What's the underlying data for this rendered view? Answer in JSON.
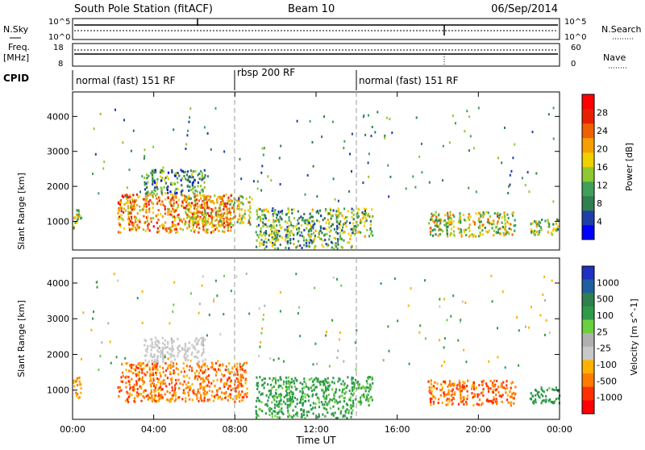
{
  "header": {
    "station": "South Pole Station (fitACF)",
    "beam": "Beam 10",
    "date": "06/Sep/2014"
  },
  "strip": {
    "nsky_label": "N.Sky",
    "nsearch_label": "N.Search",
    "noise_ticks_left": [
      "10^5",
      "10^0"
    ],
    "noise_ticks_right": [
      "10^5",
      "10^0"
    ],
    "freq_label": "Freq.",
    "freq_unit": "[MHz]",
    "nave_label": "Nave",
    "freq_ticks": [
      "18",
      "8"
    ],
    "nave_ticks": [
      "60",
      "0"
    ],
    "cpid_label": "CPID",
    "cpid_segments": [
      {
        "label": "normal (fast) 151 RF",
        "start": "00:00",
        "end": "08:00"
      },
      {
        "label": "rbsp 200 RF",
        "start": "08:00",
        "end": "14:00"
      },
      {
        "label": "normal (fast) 151 RF",
        "start": "14:00",
        "end": "24:00"
      }
    ]
  },
  "colors": {
    "power": [
      "#0000ff",
      "#1e3fa8",
      "#2f7f4f",
      "#3fa05a",
      "#8fc830",
      "#f0d000",
      "#f5a000",
      "#f06000",
      "#e82000",
      "#ff0000"
    ],
    "velocity": [
      "#ff0000",
      "#ff3000",
      "#ff7a00",
      "#ffb000",
      "#c8c8c8",
      "#b0b0b0",
      "#6ad040",
      "#2f9a4a",
      "#2f7f4f",
      "#1f5fa0",
      "#2030c0"
    ]
  },
  "chart_data": [
    {
      "type": "heatmap",
      "name": "Power",
      "xlabel": "",
      "ylabel": "Slant Range [km]",
      "x_range_hours": [
        0,
        24
      ],
      "ylim": [
        180,
        4700
      ],
      "y_ticks": [
        "1000",
        "2000",
        "3000",
        "4000"
      ],
      "colorbar_label": "Power [dB]",
      "colorbar_ticks": [
        "4",
        "8",
        "12",
        "16",
        "20",
        "24",
        "28"
      ],
      "colorbar_range": [
        0,
        32
      ],
      "regions": [
        {
          "t0": 0.0,
          "t1": 0.4,
          "r0": 800,
          "r1": 1400,
          "value": 16
        },
        {
          "t0": 2.2,
          "t1": 7.8,
          "r0": 700,
          "r1": 1800,
          "value": 22
        },
        {
          "t0": 3.5,
          "t1": 6.5,
          "r0": 1800,
          "r1": 2500,
          "value": 10
        },
        {
          "t0": 5.5,
          "t1": 8.8,
          "r0": 900,
          "r1": 1800,
          "value": 18
        },
        {
          "t0": 9.0,
          "t1": 13.8,
          "r0": 250,
          "r1": 1400,
          "value": 12
        },
        {
          "t0": 13.8,
          "t1": 14.8,
          "r0": 600,
          "r1": 1400,
          "value": 14
        },
        {
          "t0": 17.5,
          "t1": 21.8,
          "r0": 600,
          "r1": 1300,
          "value": 16
        },
        {
          "t0": 22.5,
          "t1": 24.0,
          "r0": 650,
          "r1": 1100,
          "value": 14
        }
      ]
    },
    {
      "type": "heatmap",
      "name": "Velocity",
      "xlabel": "Time UT",
      "ylabel": "Slant Range [km]",
      "x_range_hours": [
        0,
        24
      ],
      "x_ticks": [
        "00:00",
        "04:00",
        "08:00",
        "12:00",
        "16:00",
        "20:00",
        "00:00"
      ],
      "ylim": [
        180,
        4700
      ],
      "y_ticks": [
        "1000",
        "2000",
        "3000",
        "4000"
      ],
      "colorbar_label": "Velocity [m s^-1]",
      "colorbar_ticks": [
        "1000",
        "500",
        "100",
        "25",
        "-25",
        "-100",
        "-500",
        "-1000"
      ],
      "regions": [
        {
          "t0": 0.0,
          "t1": 0.4,
          "r0": 800,
          "r1": 1400,
          "value": -300
        },
        {
          "t0": 2.2,
          "t1": 8.6,
          "r0": 700,
          "r1": 1800,
          "value": -400
        },
        {
          "t0": 3.5,
          "t1": 6.5,
          "r0": 1800,
          "r1": 2500,
          "value": -60
        },
        {
          "t0": 9.0,
          "t1": 13.8,
          "r0": 250,
          "r1": 1400,
          "value": 150
        },
        {
          "t0": 13.8,
          "t1": 14.8,
          "r0": 600,
          "r1": 1400,
          "value": 100
        },
        {
          "t0": 17.5,
          "t1": 21.8,
          "r0": 600,
          "r1": 1300,
          "value": -450
        },
        {
          "t0": 22.5,
          "t1": 24.0,
          "r0": 650,
          "r1": 1100,
          "value": 200
        }
      ]
    }
  ]
}
